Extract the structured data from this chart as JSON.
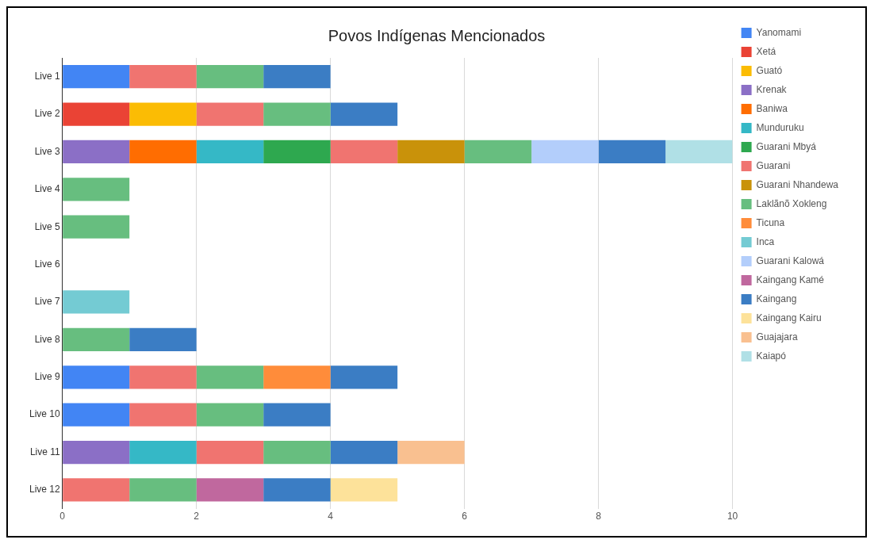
{
  "chart_data": {
    "type": "bar",
    "orientation": "horizontal",
    "stacked": true,
    "title": "Povos Indígenas Mencionados",
    "categories": [
      "Live 1",
      "Live 2",
      "Live 3",
      "Live 4",
      "Live 5",
      "Live 6",
      "Live 7",
      "Live 8",
      "Live 9",
      "Live 10",
      "Live 11",
      "Live 12"
    ],
    "xlim": [
      0,
      10
    ],
    "xticks": [
      0,
      2,
      4,
      6,
      8,
      10
    ],
    "grid": "x",
    "legend": "right",
    "series": [
      {
        "name": "Yanomami",
        "color": "#4285f4",
        "values": [
          1,
          null,
          null,
          null,
          null,
          null,
          null,
          null,
          1,
          1,
          null,
          null
        ]
      },
      {
        "name": "Xetá",
        "color": "#ea4335",
        "values": [
          null,
          1,
          null,
          null,
          null,
          null,
          null,
          null,
          null,
          null,
          null,
          null
        ]
      },
      {
        "name": "Guató",
        "color": "#fbbc04",
        "values": [
          null,
          1,
          null,
          null,
          null,
          null,
          null,
          null,
          null,
          null,
          null,
          null
        ]
      },
      {
        "name": "Krenak",
        "color": "#8b6fc6",
        "values": [
          null,
          null,
          1,
          null,
          null,
          null,
          null,
          null,
          null,
          null,
          1,
          null
        ]
      },
      {
        "name": "Baniwa",
        "color": "#ff6d01",
        "values": [
          null,
          null,
          1,
          null,
          null,
          null,
          null,
          null,
          null,
          null,
          null,
          null
        ]
      },
      {
        "name": "Munduruku",
        "color": "#35b8c6",
        "values": [
          null,
          null,
          1,
          null,
          null,
          null,
          null,
          null,
          null,
          null,
          1,
          null
        ]
      },
      {
        "name": "Guarani Mbyá",
        "color": "#2ea84f",
        "values": [
          null,
          null,
          1,
          null,
          null,
          null,
          null,
          null,
          null,
          null,
          null,
          null
        ]
      },
      {
        "name": "Guarani",
        "color": "#f07470",
        "values": [
          1,
          1,
          1,
          null,
          null,
          null,
          null,
          null,
          1,
          1,
          1,
          1
        ]
      },
      {
        "name": "Guarani Nhandewa",
        "color": "#c9920a",
        "values": [
          null,
          null,
          1,
          null,
          null,
          null,
          null,
          null,
          null,
          null,
          null,
          null
        ]
      },
      {
        "name": "Laklãnõ Xokleng",
        "color": "#67be7f",
        "values": [
          1,
          1,
          1,
          1,
          1,
          null,
          null,
          1,
          1,
          1,
          1,
          1
        ]
      },
      {
        "name": "Ticuna",
        "color": "#ff8c3a",
        "values": [
          null,
          null,
          null,
          null,
          null,
          null,
          null,
          null,
          1,
          null,
          null,
          null
        ]
      },
      {
        "name": "Inca",
        "color": "#74cbd3",
        "values": [
          null,
          null,
          null,
          null,
          null,
          null,
          1,
          null,
          null,
          null,
          null,
          null
        ]
      },
      {
        "name": "Guarani Kalowá",
        "color": "#b3cefb",
        "values": [
          null,
          null,
          1,
          null,
          null,
          null,
          null,
          null,
          null,
          null,
          null,
          null
        ]
      },
      {
        "name": "Kaingang Kamé",
        "color": "#c0689e",
        "values": [
          null,
          null,
          null,
          null,
          null,
          null,
          null,
          null,
          null,
          null,
          null,
          1
        ]
      },
      {
        "name": "Kaingang",
        "color": "#3b7dc4",
        "values": [
          1,
          1,
          1,
          null,
          null,
          null,
          null,
          1,
          1,
          1,
          1,
          1
        ]
      },
      {
        "name": "Kaingang Kairu",
        "color": "#fde29a",
        "values": [
          null,
          null,
          null,
          null,
          null,
          null,
          null,
          null,
          null,
          null,
          null,
          1
        ]
      },
      {
        "name": "Guajajara",
        "color": "#f9c090",
        "values": [
          null,
          null,
          null,
          null,
          null,
          null,
          null,
          null,
          null,
          null,
          1,
          null
        ]
      },
      {
        "name": "Kaiapó",
        "color": "#b0e0e6",
        "values": [
          null,
          null,
          1,
          null,
          null,
          null,
          null,
          null,
          null,
          null,
          null,
          null
        ]
      }
    ]
  }
}
